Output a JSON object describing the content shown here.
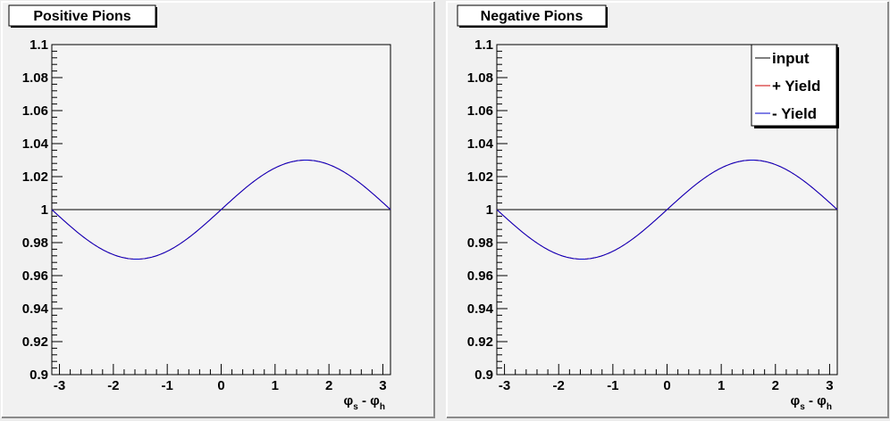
{
  "colors": {
    "canvas_bg": "#ececec",
    "frame_bg": "#f1f1f1",
    "plot_bg": "#f4f4f4",
    "input_line": "#000000",
    "plus_yield_line": "#cc0000",
    "minus_yield_line": "#0000cc"
  },
  "chart_data": [
    {
      "type": "line",
      "title": "Positive Pions",
      "xlabel": "φs - φh",
      "xlabel_symbol_left": "φ",
      "xlabel_sub_left": "s",
      "xlabel_mid": " - ",
      "xlabel_symbol_right": "φ",
      "xlabel_sub_right": "h",
      "ylabel": "",
      "xlim": [
        -3.1416,
        3.1416
      ],
      "ylim": [
        0.9,
        1.1
      ],
      "x_ticks": [
        -3,
        -2,
        -1,
        0,
        1,
        2,
        3
      ],
      "x_tick_labels": [
        "-3",
        "-2",
        "-1",
        "0",
        "1",
        "2",
        "3"
      ],
      "y_ticks": [
        0.9,
        0.92,
        0.94,
        0.96,
        0.98,
        1.0,
        1.02,
        1.04,
        1.06,
        1.08,
        1.1
      ],
      "y_tick_labels": [
        "0.9",
        "0.92",
        "0.94",
        "0.96",
        "0.98",
        "1",
        "1.02",
        "1.04",
        "1.06",
        "1.08",
        "1.1"
      ],
      "grid": false,
      "legend": null,
      "series": [
        {
          "name": "input",
          "color": "#000000",
          "function": "constant",
          "offset": 1.0,
          "amplitude": 0.0
        },
        {
          "name": "+ Yield",
          "color": "#cc0000",
          "function": "sine",
          "offset": 1.0,
          "amplitude": 0.03
        },
        {
          "name": "- Yield",
          "color": "#0000cc",
          "function": "sine",
          "offset": 1.0,
          "amplitude": 0.03
        }
      ]
    },
    {
      "type": "line",
      "title": "Negative Pions",
      "xlabel": "φs - φh",
      "xlabel_symbol_left": "φ",
      "xlabel_sub_left": "s",
      "xlabel_mid": " - ",
      "xlabel_symbol_right": "φ",
      "xlabel_sub_right": "h",
      "ylabel": "",
      "xlim": [
        -3.1416,
        3.1416
      ],
      "ylim": [
        0.9,
        1.1
      ],
      "x_ticks": [
        -3,
        -2,
        -1,
        0,
        1,
        2,
        3
      ],
      "x_tick_labels": [
        "-3",
        "-2",
        "-1",
        "0",
        "1",
        "2",
        "3"
      ],
      "y_ticks": [
        0.9,
        0.92,
        0.94,
        0.96,
        0.98,
        1.0,
        1.02,
        1.04,
        1.06,
        1.08,
        1.1
      ],
      "y_tick_labels": [
        "0.9",
        "0.92",
        "0.94",
        "0.96",
        "0.98",
        "1",
        "1.02",
        "1.04",
        "1.06",
        "1.08",
        "1.1"
      ],
      "grid": false,
      "legend": {
        "placement": "top-right",
        "entries": [
          "input",
          "+ Yield",
          "- Yield"
        ]
      },
      "series": [
        {
          "name": "input",
          "color": "#000000",
          "function": "constant",
          "offset": 1.0,
          "amplitude": 0.0
        },
        {
          "name": "+ Yield",
          "color": "#cc0000",
          "function": "sine",
          "offset": 1.0,
          "amplitude": 0.03
        },
        {
          "name": "- Yield",
          "color": "#0000cc",
          "function": "sine",
          "offset": 1.0,
          "amplitude": 0.03
        }
      ]
    }
  ]
}
